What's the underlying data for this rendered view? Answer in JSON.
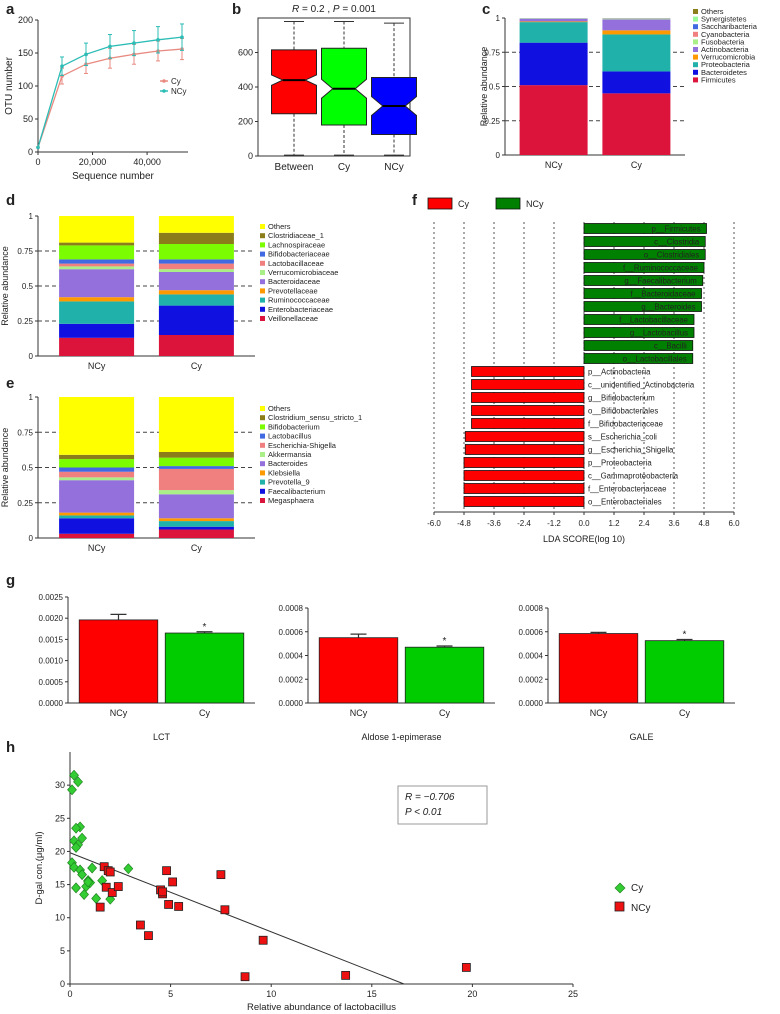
{
  "chart_data": [
    {
      "panel": "a",
      "type": "line",
      "xlabel": "Sequence number",
      "ylabel": "OTU number",
      "xticks": [
        0,
        20000,
        40000
      ],
      "xtick_labels": [
        "0",
        "20,000",
        "40,000"
      ],
      "yticks": [
        0,
        50,
        100,
        150,
        200
      ],
      "xlim": [
        0,
        55000
      ],
      "ylim": [
        0,
        200
      ],
      "series": [
        {
          "name": "Cy",
          "color": "#e88a80",
          "x": [
            0,
            8800,
            17600,
            26400,
            35200,
            44000,
            52800
          ],
          "y": [
            7,
            115,
            133,
            142,
            148,
            153,
            156
          ],
          "err": [
            0,
            12,
            14,
            15,
            15,
            15,
            16
          ]
        },
        {
          "name": "NCy",
          "color": "#2bbcb6",
          "x": [
            0,
            8800,
            17600,
            26400,
            35200,
            44000,
            52800
          ],
          "y": [
            7,
            130,
            148,
            160,
            165,
            170,
            174
          ],
          "err": [
            0,
            14,
            17,
            18,
            19,
            20,
            20
          ]
        }
      ]
    },
    {
      "panel": "b",
      "type": "box",
      "title_r": "0.2",
      "title_p": "0.001",
      "categories": [
        "Between",
        "Cy",
        "NCy"
      ],
      "colors": [
        "#ff0000",
        "#00ff00",
        "#0000ff"
      ],
      "yticks": [
        0,
        200,
        400,
        600
      ],
      "ylim": [
        0,
        800
      ],
      "boxes": [
        {
          "min": 5,
          "q1": 245,
          "median": 440,
          "q3": 615,
          "max": 780,
          "notch": 30
        },
        {
          "min": 5,
          "q1": 180,
          "median": 390,
          "q3": 625,
          "max": 780,
          "notch": 55
        },
        {
          "min": 5,
          "q1": 125,
          "median": 290,
          "q3": 455,
          "max": 770,
          "notch": 55
        }
      ]
    },
    {
      "panel": "c",
      "type": "stacked_bar",
      "ylabel": "Relative abundance",
      "categories": [
        "NCy",
        "Cy"
      ],
      "yticks": [
        "0",
        "0.25",
        "0.5",
        "0.75",
        "1"
      ],
      "legend": [
        {
          "name": "Firmicutes",
          "color": "#dc143c"
        },
        {
          "name": "Bacteroidetes",
          "color": "#1010e0"
        },
        {
          "name": "Proteobacteria",
          "color": "#20b2aa"
        },
        {
          "name": "Verrucomicrobia",
          "color": "#ff9900"
        },
        {
          "name": "Actinobacteria",
          "color": "#9370db"
        },
        {
          "name": "Fusobacteria",
          "color": "#aaee88"
        },
        {
          "name": "Cyanobacteria",
          "color": "#f08080"
        },
        {
          "name": "Saccharibacteria",
          "color": "#4169e1"
        },
        {
          "name": "Synergistetes",
          "color": "#98fb98"
        },
        {
          "name": "Others",
          "color": "#8b7e1a"
        }
      ],
      "stacks": [
        [
          0.51,
          0.31,
          0.15,
          0.005,
          0.02,
          0.002,
          0.001,
          0.001,
          0.001,
          0.0
        ],
        [
          0.45,
          0.16,
          0.27,
          0.03,
          0.08,
          0.005,
          0.002,
          0.002,
          0.001,
          0.0
        ]
      ]
    },
    {
      "panel": "d",
      "type": "stacked_bar",
      "ylabel": "Relative abundance",
      "categories": [
        "NCy",
        "Cy"
      ],
      "yticks": [
        "0",
        "0.25",
        "0.5",
        "0.75",
        "1"
      ],
      "legend": [
        {
          "name": "Veillonellaceae",
          "color": "#dc143c"
        },
        {
          "name": "Enterobacteriaceae",
          "color": "#1010e0"
        },
        {
          "name": "Ruminococcaceae",
          "color": "#20b2aa"
        },
        {
          "name": "Prevotellaceae",
          "color": "#ff9900"
        },
        {
          "name": "Bacteroidaceae",
          "color": "#9370db"
        },
        {
          "name": "Verrucomicrobiaceae",
          "color": "#aaee88"
        },
        {
          "name": "Lactobacillaceae",
          "color": "#f08080"
        },
        {
          "name": "Bifidobacteriaceae",
          "color": "#4169e1"
        },
        {
          "name": "Lachnospiraceae",
          "color": "#7cfc00"
        },
        {
          "name": "Clostridiaceae_1",
          "color": "#8b7e1a"
        },
        {
          "name": "Others",
          "color": "#ffff00"
        }
      ],
      "stacks": [
        [
          0.13,
          0.1,
          0.16,
          0.03,
          0.2,
          0.02,
          0.02,
          0.03,
          0.1,
          0.02,
          0.19
        ],
        [
          0.15,
          0.21,
          0.08,
          0.03,
          0.13,
          0.02,
          0.04,
          0.03,
          0.11,
          0.08,
          0.12
        ]
      ]
    },
    {
      "panel": "e",
      "type": "stacked_bar",
      "ylabel": "Relative abundance",
      "categories": [
        "NCy",
        "Cy"
      ],
      "yticks": [
        "0",
        "0.25",
        "0.5",
        "0.75",
        "1"
      ],
      "legend": [
        {
          "name": "Megasphaera",
          "color": "#dc143c"
        },
        {
          "name": "Faecalibacterium",
          "color": "#1010e0"
        },
        {
          "name": "Prevotella_9",
          "color": "#20b2aa"
        },
        {
          "name": "Klebsiella",
          "color": "#ff9900"
        },
        {
          "name": "Bacteroides",
          "color": "#9370db"
        },
        {
          "name": "Akkermansia",
          "color": "#aaee88"
        },
        {
          "name": "Escherichia-Shigella",
          "color": "#f08080"
        },
        {
          "name": "Lactobacillus",
          "color": "#4169e1"
        },
        {
          "name": "Bifidobacterium",
          "color": "#7cfc00"
        },
        {
          "name": "Clostridium_sensu_stricto_1",
          "color": "#8b7e1a"
        },
        {
          "name": "Others",
          "color": "#ffff00"
        }
      ],
      "stacks": [
        [
          0.03,
          0.11,
          0.02,
          0.02,
          0.23,
          0.02,
          0.04,
          0.03,
          0.06,
          0.03,
          0.41
        ],
        [
          0.06,
          0.02,
          0.04,
          0.02,
          0.17,
          0.03,
          0.15,
          0.02,
          0.06,
          0.04,
          0.39
        ]
      ]
    },
    {
      "panel": "f",
      "type": "diverging_bar",
      "xlabel": "LDA SCORE(log 10)",
      "xlim": [
        -6.0,
        6.0
      ],
      "xticks": [
        "-6.0",
        "-4.8",
        "-3.6",
        "-2.4",
        "-1.2",
        "0.0",
        "1.2",
        "2.4",
        "3.6",
        "4.8",
        "6.0"
      ],
      "legend": [
        {
          "name": "Cy",
          "color": "#ff0000"
        },
        {
          "name": "NCy",
          "color": "#008000"
        }
      ],
      "bars": [
        {
          "label": "p__Firmicutes",
          "value": 4.9
        },
        {
          "label": "c__Clostridia",
          "value": 4.85
        },
        {
          "label": "o__Clostridiales",
          "value": 4.85
        },
        {
          "label": "f__Ruminococcaceae",
          "value": 4.8
        },
        {
          "label": "g__Faecalibacterium",
          "value": 4.75
        },
        {
          "label": "f__Bacteroidaceae",
          "value": 4.7
        },
        {
          "label": "g__Bacteroides",
          "value": 4.7
        },
        {
          "label": "f__Lactobacillaceae",
          "value": 4.4
        },
        {
          "label": "g__Lactobacillus",
          "value": 4.4
        },
        {
          "label": "c__Bacilli",
          "value": 4.35
        },
        {
          "label": "o__Lactobacillales",
          "value": 4.35
        },
        {
          "label": "p__Actinobacteria",
          "value": -4.5
        },
        {
          "label": "c__unidentified_Actinobacteria",
          "value": -4.5
        },
        {
          "label": "g__Bifidobacterium",
          "value": -4.5
        },
        {
          "label": "o__Bifidobacteriales",
          "value": -4.5
        },
        {
          "label": "f__Bifidobacteriaceae",
          "value": -4.5
        },
        {
          "label": "s__Escherichia_coli",
          "value": -4.75
        },
        {
          "label": "g__Escherichia_Shigella",
          "value": -4.75
        },
        {
          "label": "p__Proteobacteria",
          "value": -4.8
        },
        {
          "label": "c__Gammaproteobacteria",
          "value": -4.8
        },
        {
          "label": "f__Enterobacteriaceae",
          "value": -4.8
        },
        {
          "label": "o__Enterobacteriales",
          "value": -4.8
        }
      ]
    },
    {
      "panel": "g1",
      "type": "bar",
      "xlabel": "LCT",
      "categories": [
        "NCy",
        "Cy"
      ],
      "values": [
        0.00196,
        0.00165
      ],
      "err": [
        0.00013,
        3e-05
      ],
      "colors": [
        "#ff0000",
        "#00cc00"
      ],
      "ylim": [
        0,
        0.0025
      ],
      "yticks": [
        "0.0000",
        "0.0005",
        "0.0010",
        "0.0015",
        "0.0020",
        "0.0025"
      ],
      "ytick_values": [
        0,
        0.0005,
        0.001,
        0.0015,
        0.002,
        0.0025
      ],
      "annotation": "*"
    },
    {
      "panel": "g2",
      "type": "bar",
      "xlabel": "Aldose 1-epimerase",
      "categories": [
        "NCy",
        "Cy"
      ],
      "values": [
        0.00055,
        0.00047
      ],
      "err": [
        3e-05,
        1e-05
      ],
      "colors": [
        "#ff0000",
        "#00cc00"
      ],
      "ylim": [
        0,
        0.0008
      ],
      "yticks": [
        "0.0000",
        "0.0002",
        "0.0004",
        "0.0006",
        "0.0008"
      ],
      "ytick_values": [
        0,
        0.0002,
        0.0004,
        0.0006,
        0.0008
      ],
      "annotation": "*"
    },
    {
      "panel": "g3",
      "type": "bar",
      "xlabel": "GALE",
      "categories": [
        "NCy",
        "Cy"
      ],
      "values": [
        0.000585,
        0.000525
      ],
      "err": [
        1e-05,
        1e-05
      ],
      "colors": [
        "#ff0000",
        "#00cc00"
      ],
      "ylim": [
        0,
        0.0008
      ],
      "yticks": [
        "0.0000",
        "0.0002",
        "0.0004",
        "0.0006",
        "0.0008"
      ],
      "ytick_values": [
        0,
        0.0002,
        0.0004,
        0.0006,
        0.0008
      ],
      "annotation": "*"
    },
    {
      "panel": "h",
      "type": "scatter",
      "xlabel": "Relative abundance of lactobacillus",
      "ylabel": "D-gal con.(μg/ml)",
      "xlim": [
        0,
        25
      ],
      "ylim": [
        0,
        35
      ],
      "xticks": [
        0,
        5,
        10,
        15,
        20,
        25
      ],
      "yticks": [
        0,
        5,
        10,
        15,
        20,
        25,
        30
      ],
      "stat_r": "R = −0.706",
      "stat_p": "P < 0.01",
      "fit": {
        "x": [
          0,
          16.6
        ],
        "y": [
          19.8,
          0
        ]
      },
      "series": [
        {
          "name": "Cy",
          "color": "#33cc33",
          "marker": "diamond",
          "x": [
            0.2,
            0.4,
            0.1,
            0.5,
            0.3,
            0.6,
            0.2,
            0.4,
            0.3,
            0.1,
            0.2,
            0.5,
            0.6,
            0.9,
            1.1,
            0.3,
            0.8,
            0.7,
            1.3,
            1.0,
            1.6,
            2.0,
            1.9,
            2.9,
            0.9
          ],
          "y": [
            31.5,
            30.5,
            29.3,
            23.7,
            23.5,
            22.0,
            21.6,
            21.0,
            20.6,
            18.3,
            17.6,
            17.2,
            16.5,
            15.6,
            17.5,
            14.5,
            14.7,
            13.5,
            12.9,
            15.3,
            15.6,
            12.8,
            17.1,
            17.4,
            15.4
          ]
        },
        {
          "name": "NCy",
          "color": "#ee1111",
          "marker": "square",
          "x": [
            1.7,
            1.9,
            1.5,
            1.8,
            2.1,
            2.4,
            2.0,
            3.5,
            3.9,
            4.5,
            4.6,
            4.8,
            4.9,
            5.1,
            5.4,
            7.5,
            7.7,
            9.6,
            8.7,
            13.7,
            19.7,
            4.6
          ],
          "y": [
            17.7,
            17.1,
            11.6,
            14.6,
            13.8,
            14.7,
            16.9,
            8.9,
            7.3,
            14.2,
            13.6,
            17.1,
            12.0,
            15.4,
            11.7,
            16.5,
            11.2,
            6.6,
            1.1,
            1.3,
            2.5,
            13.9
          ]
        }
      ]
    }
  ]
}
